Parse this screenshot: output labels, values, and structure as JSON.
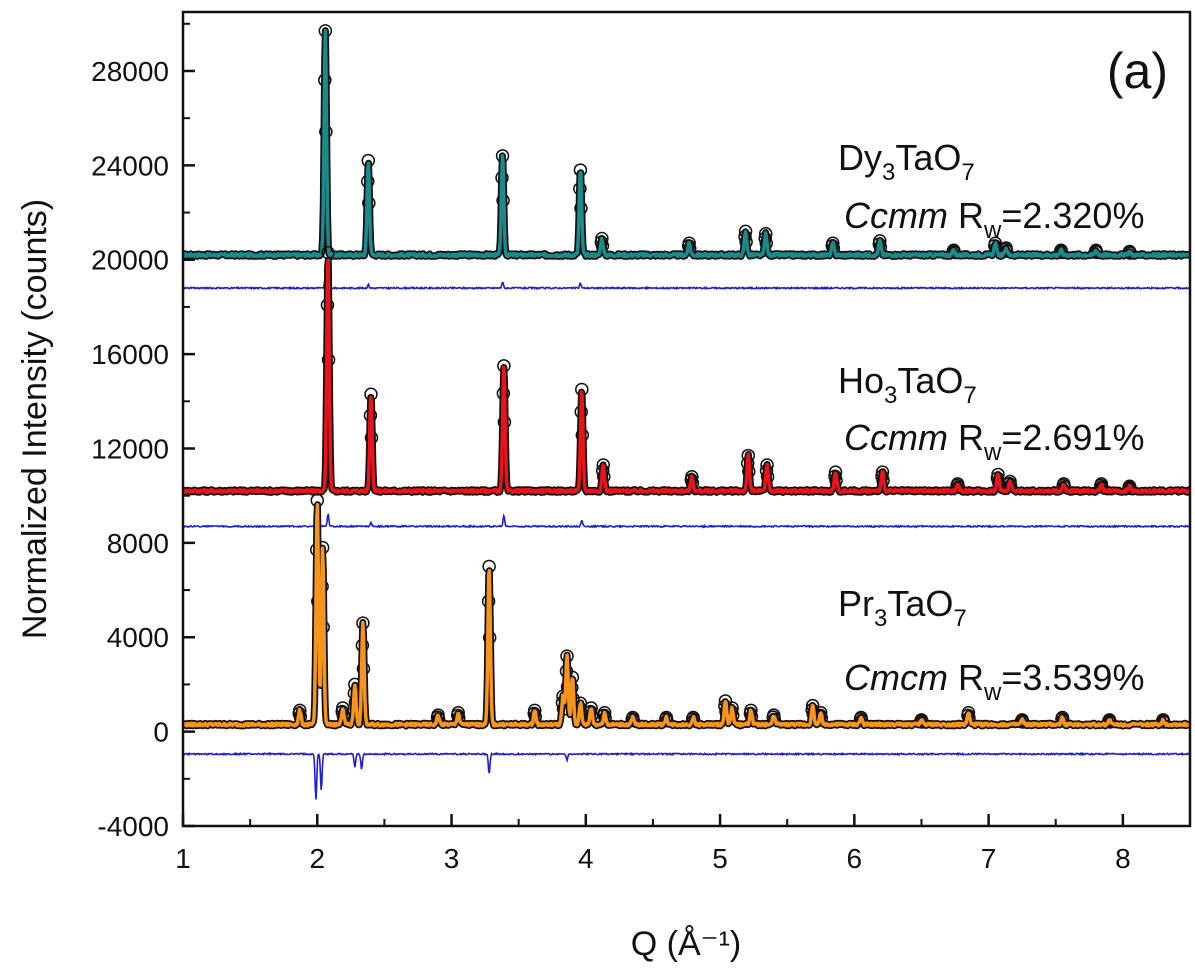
{
  "chart_data": {
    "type": "line",
    "panel_label": "(a)",
    "xlabel": "Q (Å⁻¹)",
    "ylabel": "Normalized Intensity (counts)",
    "xlim": [
      1,
      8.5
    ],
    "ylim": [
      -4000,
      30500
    ],
    "x_ticks": [
      1,
      2,
      3,
      4,
      5,
      6,
      7,
      8
    ],
    "y_ticks": [
      -4000,
      0,
      4000,
      8000,
      12000,
      16000,
      20000,
      24000,
      28000
    ],
    "series": [
      {
        "baseline": 20200,
        "diff_baseline": 18800,
        "color": "#1a8a8a",
        "peaks": [
          [
            2.06,
            29700
          ],
          [
            2.38,
            24200
          ],
          [
            3.38,
            24400
          ],
          [
            3.96,
            23800
          ],
          [
            4.12,
            20900
          ],
          [
            4.77,
            20700
          ],
          [
            5.19,
            21200
          ],
          [
            5.34,
            21100
          ],
          [
            5.84,
            20700
          ],
          [
            6.19,
            20800
          ],
          [
            6.74,
            20400
          ],
          [
            7.05,
            20700
          ],
          [
            7.13,
            20500
          ],
          [
            7.54,
            20400
          ],
          [
            7.8,
            20400
          ],
          [
            8.05,
            20350
          ]
        ],
        "diff_spikes": [
          [
            2.06,
            19200
          ],
          [
            3.38,
            19050
          ],
          [
            3.96,
            19000
          ],
          [
            2.38,
            18950
          ]
        ]
      },
      {
        "baseline": 10200,
        "diff_baseline": 8700,
        "color": "#e8141a",
        "peaks": [
          [
            2.08,
            20300
          ],
          [
            2.4,
            14300
          ],
          [
            3.39,
            15500
          ],
          [
            3.97,
            14500
          ],
          [
            4.13,
            11300
          ],
          [
            4.79,
            10800
          ],
          [
            5.21,
            11700
          ],
          [
            5.35,
            11300
          ],
          [
            5.86,
            11000
          ],
          [
            6.21,
            11000
          ],
          [
            6.77,
            10500
          ],
          [
            7.07,
            10900
          ],
          [
            7.16,
            10600
          ],
          [
            7.56,
            10500
          ],
          [
            7.84,
            10500
          ],
          [
            8.05,
            10400
          ]
        ],
        "diff_spikes": [
          [
            2.08,
            9200
          ],
          [
            3.39,
            9150
          ],
          [
            3.97,
            8950
          ],
          [
            2.4,
            8850
          ]
        ]
      },
      {
        "baseline": 300,
        "diff_baseline": -950,
        "color": "#f7941d",
        "peaks": [
          [
            1.87,
            900
          ],
          [
            2.0,
            9800
          ],
          [
            2.04,
            7800
          ],
          [
            2.19,
            1000
          ],
          [
            2.28,
            2000
          ],
          [
            2.34,
            4600
          ],
          [
            2.9,
            700
          ],
          [
            3.05,
            800
          ],
          [
            3.28,
            7000
          ],
          [
            3.62,
            900
          ],
          [
            3.83,
            1500
          ],
          [
            3.86,
            3200
          ],
          [
            3.9,
            2300
          ],
          [
            3.96,
            1200
          ],
          [
            4.04,
            1000
          ],
          [
            4.14,
            800
          ],
          [
            4.35,
            600
          ],
          [
            4.6,
            600
          ],
          [
            4.8,
            600
          ],
          [
            5.04,
            1300
          ],
          [
            5.09,
            1000
          ],
          [
            5.23,
            900
          ],
          [
            5.4,
            700
          ],
          [
            5.69,
            1100
          ],
          [
            5.75,
            800
          ],
          [
            6.05,
            600
          ],
          [
            6.5,
            500
          ],
          [
            6.85,
            800
          ],
          [
            7.25,
            500
          ],
          [
            7.55,
            600
          ],
          [
            7.9,
            500
          ],
          [
            8.3,
            500
          ]
        ],
        "diff_spikes": [
          [
            1.99,
            -2900
          ],
          [
            2.03,
            -2500
          ],
          [
            2.28,
            -1500
          ],
          [
            2.33,
            -1600
          ],
          [
            3.28,
            -1800
          ],
          [
            3.86,
            -1200
          ]
        ]
      }
    ],
    "annotations": [
      {
        "formula": "Dy",
        "sub1": "3",
        "mid": "TaO",
        "sub2": "7",
        "group": "Ccmm",
        "rw": "R",
        "rw_sub": "w",
        "value": "=2.320%"
      },
      {
        "formula": "Ho",
        "sub1": "3",
        "mid": "TaO",
        "sub2": "7",
        "group": "Ccmm",
        "rw": "R",
        "rw_sub": "w",
        "value": "=2.691%"
      },
      {
        "formula": "Pr",
        "sub1": "3",
        "mid": "TaO",
        "sub2": "7",
        "group": "Cmcm",
        "rw": "R",
        "rw_sub": "w",
        "value": "=3.539%"
      }
    ]
  }
}
